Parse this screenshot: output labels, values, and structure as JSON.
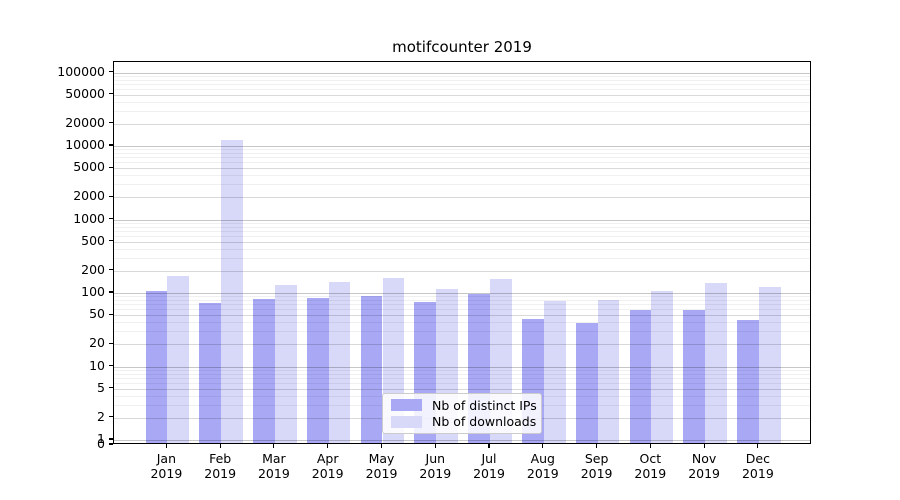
{
  "title": "motifcounter 2019",
  "chart_data": {
    "type": "bar",
    "title": "motifcounter 2019",
    "categories": [
      "Jan 2019",
      "Feb 2019",
      "Mar 2019",
      "Apr 2019",
      "May 2019",
      "Jun 2019",
      "Jul 2019",
      "Aug 2019",
      "Sep 2019",
      "Oct 2019",
      "Nov 2019",
      "Dec 2019"
    ],
    "series": [
      {
        "name": "Nb of distinct IPs",
        "color": "#a8a8f5",
        "values": [
          100,
          68,
          78,
          80,
          86,
          71,
          90,
          42,
          37,
          55,
          56,
          40
        ]
      },
      {
        "name": "Nb of downloads",
        "color": "#d8d8f8",
        "values": [
          158,
          11500,
          120,
          133,
          152,
          107,
          145,
          74,
          76,
          100,
          128,
          115
        ]
      }
    ],
    "yscale": "symlog",
    "yticks": [
      0,
      1,
      2,
      5,
      10,
      20,
      50,
      100,
      200,
      500,
      1000,
      2000,
      5000,
      10000,
      20000,
      50000,
      100000
    ],
    "ylim": [
      0,
      100000
    ],
    "grid": true,
    "legend_position": "lower center",
    "xlabel": "",
    "ylabel": ""
  }
}
